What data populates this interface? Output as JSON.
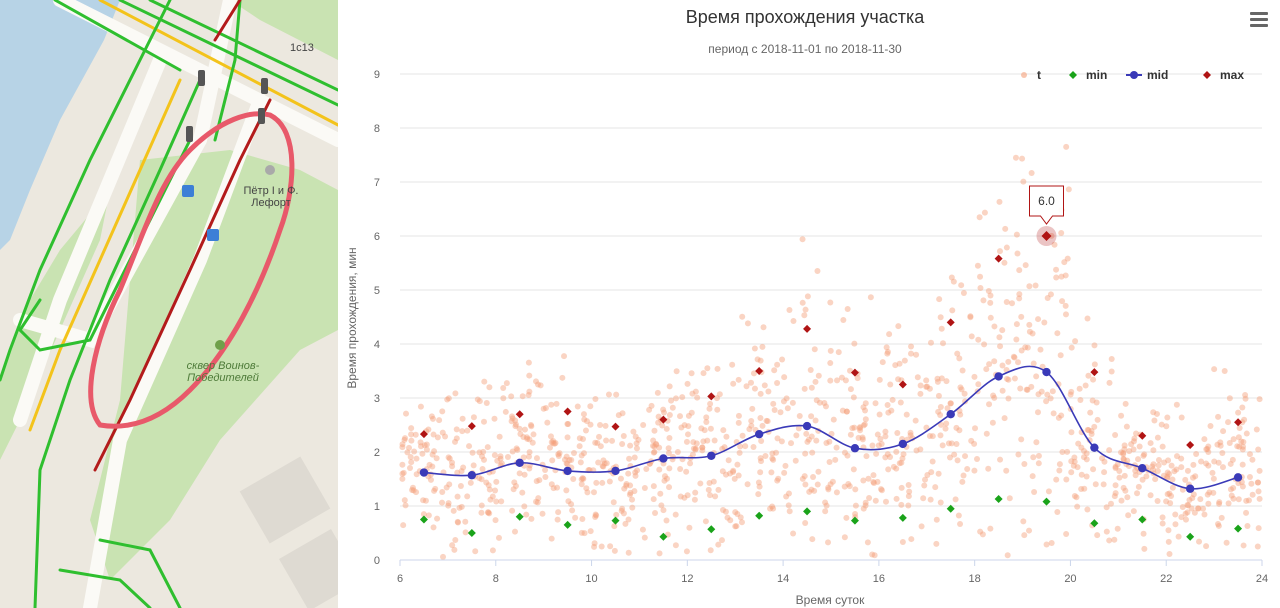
{
  "map": {
    "labels": {
      "building": "1с13",
      "stop": "Пётр I и Ф. Лефорт",
      "park": "сквер Воинов-Победителей"
    },
    "colors": {
      "water": "#b7d3e6",
      "park": "#c9e3b2",
      "road": "#fbfaf6",
      "traffic_free": "#2fbf2f",
      "traffic_medium": "#f3c31b",
      "traffic_jam": "#b31b1b",
      "selection": "#e8596a"
    }
  },
  "chart_data": {
    "type": "scatter",
    "title": "Время прохождения участка",
    "subtitle": "период с 2018-11-01 по 2018-11-30",
    "xlabel": "Время суток",
    "ylabel": "Время прохождения, мин",
    "xlim": [
      6,
      24
    ],
    "ylim": [
      0,
      9
    ],
    "xticks": [
      6,
      8,
      10,
      12,
      14,
      16,
      18,
      20,
      22,
      24
    ],
    "yticks": [
      0,
      1,
      2,
      3,
      4,
      5,
      6,
      7,
      8,
      9
    ],
    "grid": true,
    "legend_position": "top-right",
    "series": [
      {
        "name": "t",
        "kind": "scatter",
        "color": "#f5a07a"
      },
      {
        "name": "min",
        "kind": "marker",
        "color": "#1aa31a",
        "x": [
          6.5,
          7.5,
          8.5,
          9.5,
          10.5,
          11.5,
          12.5,
          13.5,
          14.5,
          15.5,
          16.5,
          17.5,
          18.5,
          19.5,
          20.5,
          21.5,
          22.5,
          23.5
        ],
        "values": [
          0.75,
          0.5,
          0.8,
          0.65,
          0.73,
          0.43,
          0.57,
          0.82,
          0.9,
          0.73,
          0.78,
          0.95,
          1.13,
          1.08,
          0.68,
          0.75,
          0.43,
          0.58
        ]
      },
      {
        "name": "mid",
        "kind": "line",
        "color": "#3a3ab8",
        "x": [
          6.5,
          7.5,
          8.5,
          9.5,
          10.5,
          11.5,
          12.5,
          13.5,
          14.5,
          15.5,
          16.5,
          17.5,
          18.5,
          19.5,
          20.5,
          21.5,
          22.5,
          23.5
        ],
        "values": [
          1.62,
          1.57,
          1.8,
          1.65,
          1.65,
          1.88,
          1.93,
          2.33,
          2.48,
          2.07,
          2.15,
          2.7,
          3.4,
          3.48,
          2.08,
          1.7,
          1.32,
          1.53
        ]
      },
      {
        "name": "max",
        "kind": "marker",
        "color": "#b01414",
        "x": [
          6.5,
          7.5,
          8.5,
          9.5,
          10.5,
          11.5,
          12.5,
          13.5,
          14.5,
          15.5,
          16.5,
          17.5,
          18.5,
          19.5,
          20.5,
          21.5,
          22.5,
          23.5
        ],
        "values": [
          2.33,
          2.48,
          2.7,
          2.75,
          2.47,
          2.6,
          3.03,
          3.5,
          4.28,
          3.47,
          3.25,
          4.4,
          5.58,
          6.0,
          3.48,
          2.3,
          2.13,
          2.55
        ]
      }
    ],
    "tooltip": {
      "x": 19.5,
      "value": "6.0"
    }
  }
}
